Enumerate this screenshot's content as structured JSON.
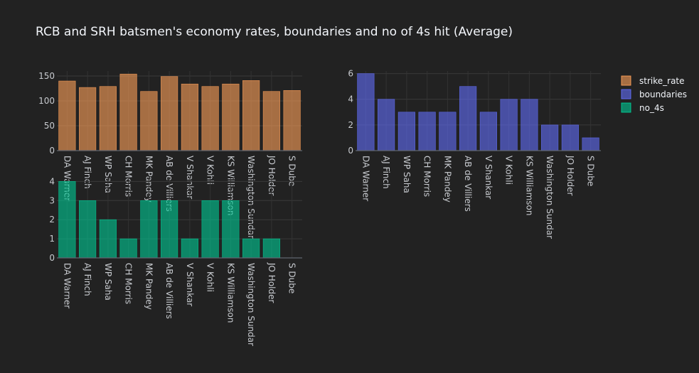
{
  "chart_data": {
    "type": "bar",
    "title": "RCB and SRH batsmen's economy rates, boundaries and no of 4s hit (Average)",
    "categories": [
      "DA Warner",
      "AJ Finch",
      "WP Saha",
      "CH Morris",
      "MK Pandey",
      "AB de Villiers",
      "V Shankar",
      "V Kohli",
      "KS Williamson",
      "Washington Sundar",
      "JO Holder",
      "S Dube"
    ],
    "grid": true,
    "legend_position": "right",
    "series": [
      {
        "name": "strike_rate",
        "color": "#FFA15A",
        "values": [
          140,
          127,
          129,
          154,
          119,
          149,
          134,
          129,
          134,
          141,
          119,
          121
        ],
        "ylim": [
          0,
          160
        ],
        "yticks": [
          0,
          50,
          100,
          150
        ]
      },
      {
        "name": "boundaries",
        "color": "#636EFA",
        "values": [
          6,
          4,
          3,
          3,
          3,
          5,
          3,
          4,
          4,
          2,
          2,
          1
        ],
        "ylim": [
          0,
          6.2
        ],
        "yticks": [
          0,
          2,
          4,
          6
        ]
      },
      {
        "name": "no_4s",
        "color": "#00CC96",
        "values": [
          4,
          3,
          2,
          1,
          3,
          3,
          1,
          3,
          3,
          1,
          1,
          0
        ],
        "ylim": [
          0,
          4.2
        ],
        "yticks": [
          0,
          1,
          2,
          3,
          4
        ]
      }
    ]
  }
}
